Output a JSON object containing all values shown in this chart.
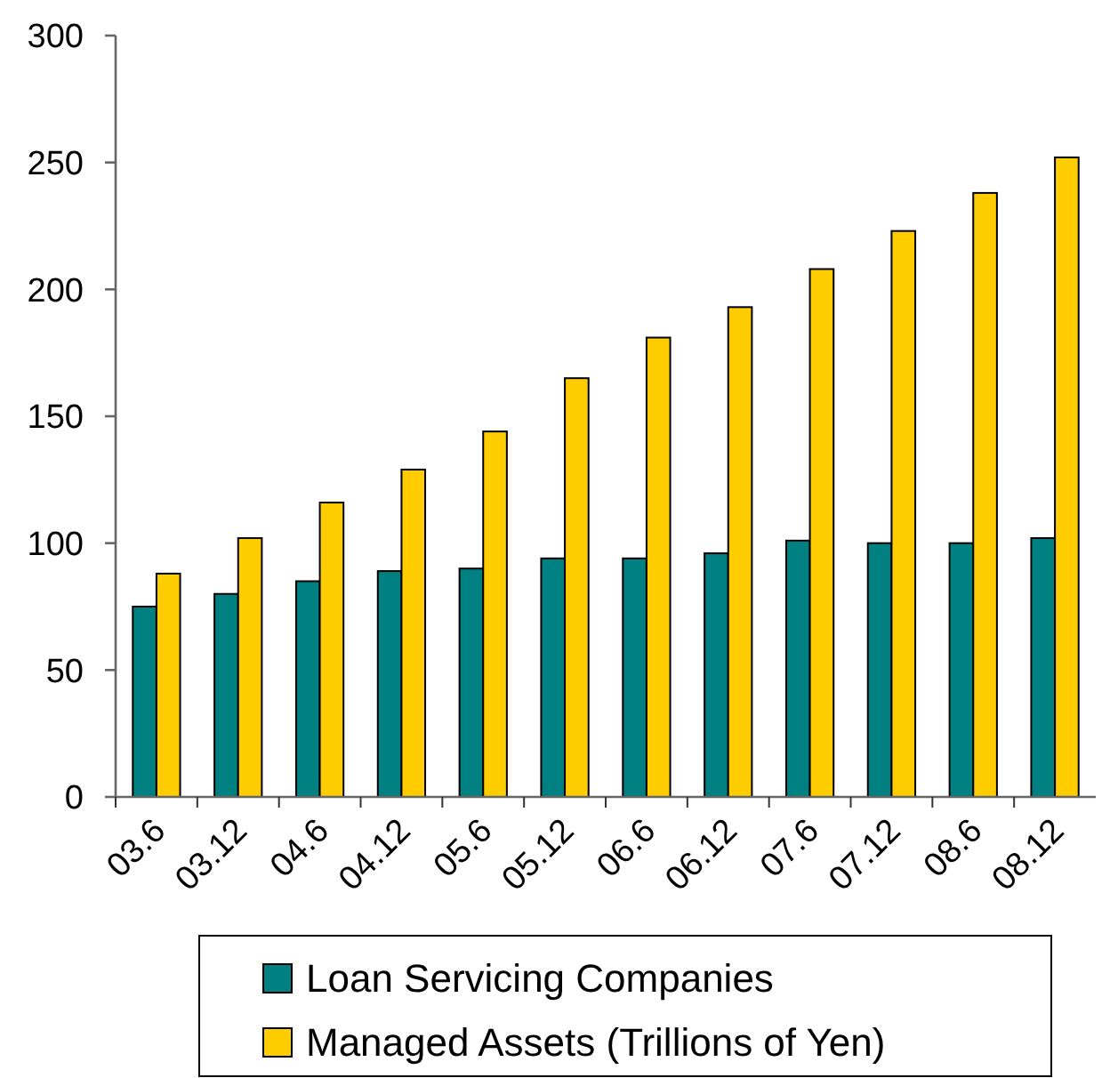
{
  "chart_data": {
    "type": "bar",
    "categories": [
      "03.6",
      "03.12",
      "04.6",
      "04.12",
      "05.6",
      "05.12",
      "06.6",
      "06.12",
      "07.6",
      "07.12",
      "08.6",
      "08.12"
    ],
    "series": [
      {
        "name": "Loan Servicing Companies",
        "color": "#008080",
        "values": [
          75,
          80,
          85,
          89,
          90,
          94,
          94,
          96,
          101,
          100,
          100,
          102
        ]
      },
      {
        "name": "Managed Assets (Trillions of Yen)",
        "color": "#ffcc00",
        "values": [
          88,
          102,
          116,
          129,
          144,
          165,
          181,
          193,
          208,
          223,
          238,
          252
        ]
      }
    ],
    "ylim": [
      0,
      300
    ],
    "yticks": [
      0,
      50,
      100,
      150,
      200,
      250,
      300
    ],
    "grid": false,
    "legend": "bottom"
  }
}
